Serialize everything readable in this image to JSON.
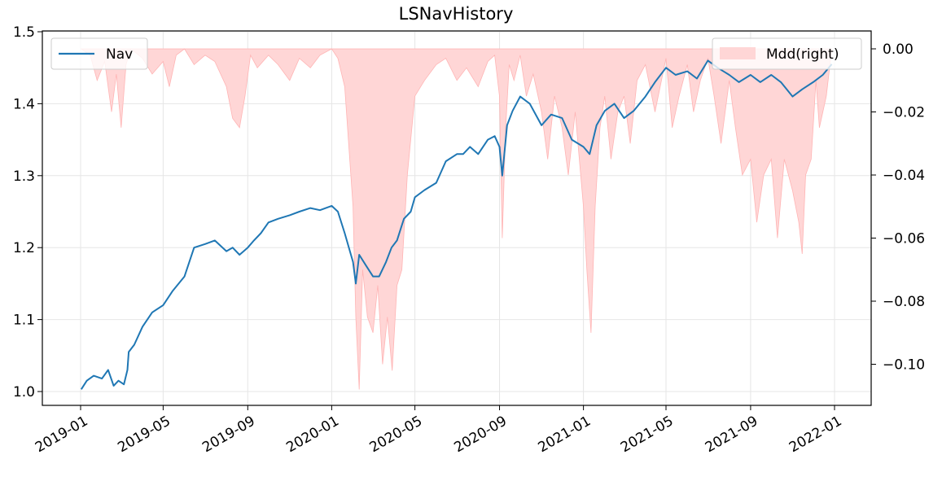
{
  "chart_data": {
    "type": "line",
    "title": "LSNavHistory",
    "xlabel": "",
    "ylabel": "",
    "x_ticks": [
      "2019-01",
      "2019-05",
      "2019-09",
      "2020-01",
      "2020-05",
      "2020-09",
      "2021-01",
      "2021-05",
      "2021-09",
      "2022-01"
    ],
    "y_left": {
      "ylim": [
        0.98,
        1.5
      ],
      "ticks": [
        "1.0",
        "1.1",
        "1.2",
        "1.3",
        "1.4",
        "1.5"
      ]
    },
    "y_right": {
      "ylim": [
        -0.111,
        0.005
      ],
      "ticks": [
        "0.00",
        "−0.02",
        "−0.04",
        "−0.06",
        "−0.08",
        "−0.10"
      ]
    },
    "grid": true,
    "legend": [
      {
        "label": "Nav",
        "placement": "upper-left"
      },
      {
        "label": "Mdd(right)",
        "placement": "upper-right"
      }
    ],
    "colors": {
      "nav": "#1f77b4",
      "mdd_fill": "#ffd6d6",
      "mdd_edge": "#ffb4b4",
      "grid": "#e6e6e6"
    },
    "series": [
      {
        "name": "Nav",
        "axis": "left",
        "style": "line",
        "x": [
          "2019-01-02",
          "2019-01-10",
          "2019-01-20",
          "2019-02-01",
          "2019-02-10",
          "2019-02-18",
          "2019-02-25",
          "2019-03-05",
          "2019-03-10",
          "2019-03-12",
          "2019-03-20",
          "2019-04-01",
          "2019-04-15",
          "2019-05-01",
          "2019-05-15",
          "2019-06-01",
          "2019-06-15",
          "2019-07-01",
          "2019-07-15",
          "2019-08-01",
          "2019-08-10",
          "2019-08-20",
          "2019-09-01",
          "2019-09-10",
          "2019-09-20",
          "2019-10-01",
          "2019-10-15",
          "2019-11-01",
          "2019-11-15",
          "2019-12-01",
          "2019-12-15",
          "2020-01-01",
          "2020-01-10",
          "2020-01-20",
          "2020-02-01",
          "2020-02-05",
          "2020-02-10",
          "2020-02-20",
          "2020-03-01",
          "2020-03-10",
          "2020-03-20",
          "2020-03-28",
          "2020-04-05",
          "2020-04-15",
          "2020-04-25",
          "2020-05-01",
          "2020-05-15",
          "2020-06-01",
          "2020-06-15",
          "2020-07-01",
          "2020-07-10",
          "2020-07-20",
          "2020-08-01",
          "2020-08-15",
          "2020-08-25",
          "2020-09-01",
          "2020-09-05",
          "2020-09-12",
          "2020-09-20",
          "2020-10-01",
          "2020-10-15",
          "2020-11-01",
          "2020-11-15",
          "2020-12-01",
          "2020-12-15",
          "2021-01-01",
          "2021-01-10",
          "2021-01-20",
          "2021-02-01",
          "2021-02-15",
          "2021-03-01",
          "2021-03-15",
          "2021-04-01",
          "2021-04-15",
          "2021-05-01",
          "2021-05-15",
          "2021-06-01",
          "2021-06-15",
          "2021-07-01",
          "2021-07-15",
          "2021-08-01",
          "2021-08-15",
          "2021-09-01",
          "2021-09-15",
          "2021-10-01",
          "2021-10-15",
          "2021-11-01",
          "2021-11-15",
          "2021-12-01",
          "2021-12-15",
          "2021-12-28"
        ],
        "values": [
          1.003,
          1.015,
          1.022,
          1.018,
          1.03,
          1.008,
          1.015,
          1.01,
          1.03,
          1.055,
          1.065,
          1.09,
          1.11,
          1.12,
          1.14,
          1.16,
          1.2,
          1.205,
          1.21,
          1.195,
          1.2,
          1.19,
          1.2,
          1.21,
          1.22,
          1.235,
          1.24,
          1.245,
          1.25,
          1.255,
          1.252,
          1.258,
          1.25,
          1.22,
          1.18,
          1.15,
          1.19,
          1.175,
          1.16,
          1.16,
          1.18,
          1.2,
          1.21,
          1.24,
          1.25,
          1.27,
          1.28,
          1.29,
          1.32,
          1.33,
          1.33,
          1.34,
          1.33,
          1.35,
          1.355,
          1.34,
          1.3,
          1.37,
          1.39,
          1.41,
          1.4,
          1.37,
          1.385,
          1.38,
          1.35,
          1.34,
          1.33,
          1.37,
          1.39,
          1.4,
          1.38,
          1.39,
          1.41,
          1.43,
          1.45,
          1.44,
          1.445,
          1.435,
          1.46,
          1.45,
          1.44,
          1.43,
          1.44,
          1.43,
          1.44,
          1.43,
          1.41,
          1.42,
          1.43,
          1.44,
          1.455
        ]
      },
      {
        "name": "Mdd(right)",
        "axis": "right",
        "style": "area",
        "x": [
          "2019-01-02",
          "2019-01-15",
          "2019-01-25",
          "2019-02-05",
          "2019-02-15",
          "2019-02-22",
          "2019-03-01",
          "2019-03-08",
          "2019-03-15",
          "2019-04-01",
          "2019-04-15",
          "2019-05-01",
          "2019-05-10",
          "2019-05-20",
          "2019-06-01",
          "2019-06-15",
          "2019-07-01",
          "2019-07-15",
          "2019-08-01",
          "2019-08-10",
          "2019-08-20",
          "2019-08-28",
          "2019-09-05",
          "2019-09-15",
          "2019-10-01",
          "2019-10-15",
          "2019-11-01",
          "2019-11-15",
          "2019-12-01",
          "2019-12-15",
          "2020-01-01",
          "2020-01-10",
          "2020-01-20",
          "2020-02-01",
          "2020-02-05",
          "2020-02-10",
          "2020-02-15",
          "2020-02-22",
          "2020-03-01",
          "2020-03-08",
          "2020-03-15",
          "2020-03-22",
          "2020-03-29",
          "2020-04-05",
          "2020-04-12",
          "2020-04-20",
          "2020-05-01",
          "2020-05-15",
          "2020-06-01",
          "2020-06-15",
          "2020-07-01",
          "2020-07-15",
          "2020-08-01",
          "2020-08-15",
          "2020-08-25",
          "2020-09-01",
          "2020-09-05",
          "2020-09-10",
          "2020-09-15",
          "2020-09-22",
          "2020-10-01",
          "2020-10-10",
          "2020-10-20",
          "2020-11-01",
          "2020-11-10",
          "2020-11-20",
          "2020-12-01",
          "2020-12-10",
          "2020-12-20",
          "2021-01-01",
          "2021-01-06",
          "2021-01-12",
          "2021-01-18",
          "2021-01-25",
          "2021-02-01",
          "2021-02-10",
          "2021-02-20",
          "2021-03-01",
          "2021-03-10",
          "2021-03-20",
          "2021-04-01",
          "2021-04-15",
          "2021-05-01",
          "2021-05-10",
          "2021-05-20",
          "2021-06-01",
          "2021-06-10",
          "2021-06-20",
          "2021-07-01",
          "2021-07-10",
          "2021-07-20",
          "2021-08-01",
          "2021-08-10",
          "2021-08-20",
          "2021-09-01",
          "2021-09-10",
          "2021-09-20",
          "2021-10-01",
          "2021-10-10",
          "2021-10-20",
          "2021-11-01",
          "2021-11-10",
          "2021-11-15",
          "2021-11-20",
          "2021-11-28",
          "2021-12-05",
          "2021-12-10",
          "2021-12-20",
          "2021-12-28"
        ],
        "values": [
          0.0,
          -0.002,
          -0.01,
          -0.004,
          -0.02,
          -0.008,
          -0.025,
          -0.005,
          0.0,
          -0.003,
          -0.008,
          -0.004,
          -0.012,
          -0.002,
          0.0,
          -0.005,
          -0.002,
          -0.004,
          -0.012,
          -0.022,
          -0.025,
          -0.015,
          -0.002,
          -0.006,
          -0.002,
          -0.005,
          -0.01,
          -0.003,
          -0.006,
          -0.002,
          0.0,
          -0.003,
          -0.012,
          -0.05,
          -0.085,
          -0.108,
          -0.07,
          -0.085,
          -0.09,
          -0.075,
          -0.1,
          -0.085,
          -0.102,
          -0.075,
          -0.07,
          -0.04,
          -0.015,
          -0.01,
          -0.005,
          -0.003,
          -0.01,
          -0.006,
          -0.012,
          -0.004,
          -0.002,
          -0.015,
          -0.06,
          -0.025,
          -0.005,
          -0.01,
          -0.002,
          -0.015,
          -0.008,
          -0.02,
          -0.035,
          -0.015,
          -0.025,
          -0.04,
          -0.02,
          -0.05,
          -0.07,
          -0.09,
          -0.05,
          -0.025,
          -0.015,
          -0.035,
          -0.02,
          -0.015,
          -0.03,
          -0.01,
          -0.005,
          -0.02,
          -0.003,
          -0.025,
          -0.015,
          -0.005,
          -0.02,
          -0.01,
          -0.003,
          -0.015,
          -0.03,
          -0.01,
          -0.025,
          -0.04,
          -0.035,
          -0.055,
          -0.04,
          -0.035,
          -0.06,
          -0.035,
          -0.045,
          -0.055,
          -0.065,
          -0.04,
          -0.035,
          -0.01,
          -0.025,
          -0.015,
          0.0
        ]
      }
    ]
  }
}
